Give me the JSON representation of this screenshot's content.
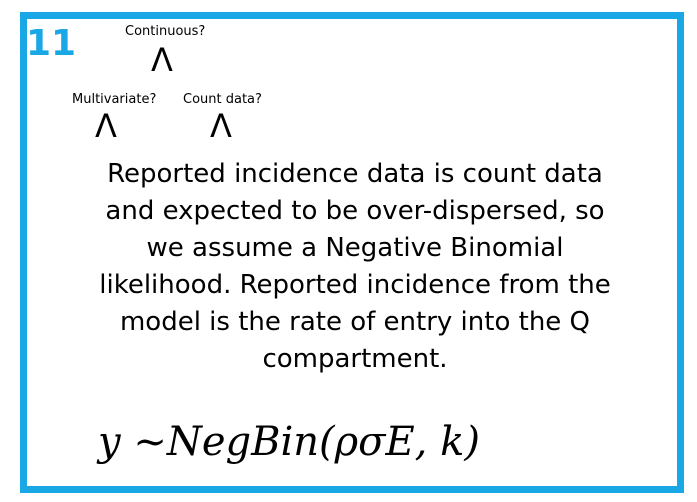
{
  "slide": {
    "number": "11",
    "accent_color": "#1aa7e6"
  },
  "decision_tree": {
    "root": "Continuous?",
    "left_child": "Multivariate?",
    "right_child": "Count data?",
    "connector_glyph": "Λ"
  },
  "body_text": {
    "lines": [
      "Reported incidence data is count data",
      "and expected to be over-dispersed, so",
      "we assume a Negative Binomial",
      "likelihood. Reported incidence from the",
      "model is the rate of entry into the Q",
      "compartment."
    ]
  },
  "formula": {
    "text": "y ~NegBin(ρσE, k)"
  }
}
